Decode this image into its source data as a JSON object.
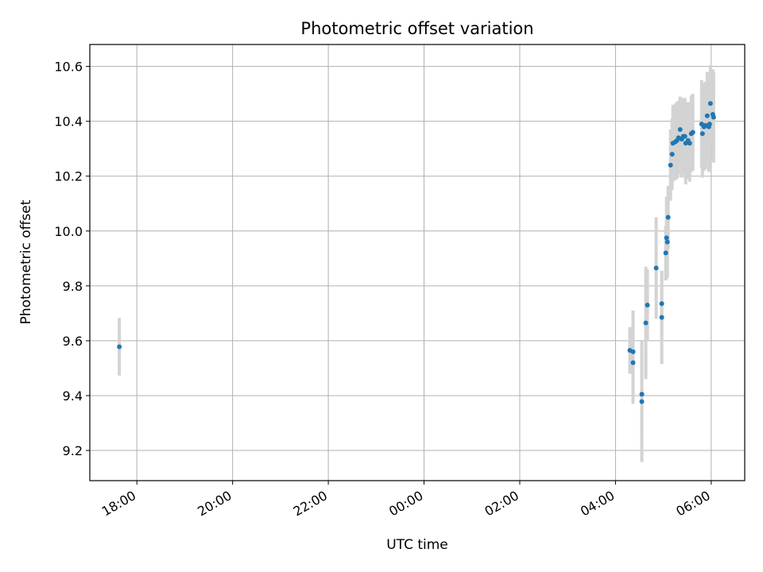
{
  "chart_data": {
    "type": "scatter",
    "title": "Photometric offset variation",
    "xlabel": "UTC time",
    "ylabel": "Photometric offset",
    "x_ticks": [
      "18:00",
      "20:00",
      "22:00",
      "00:00",
      "02:00",
      "04:00",
      "06:00"
    ],
    "y_ticks": [
      "9.2",
      "9.4",
      "9.6",
      "9.8",
      "10.0",
      "10.2",
      "10.4",
      "10.6"
    ],
    "xlim": [
      "17:01",
      "06:42"
    ],
    "ylim": [
      9.09,
      10.68
    ],
    "grid": true,
    "legend": "none",
    "colors": {
      "points": "#1f77b4",
      "errorbars": "#d3d3d3",
      "grid": "#b0b0b0"
    },
    "series": [
      {
        "points": [
          {
            "t": "17:38",
            "y": 9.578,
            "err": 0.105
          },
          {
            "t": "04:18",
            "y": 9.565,
            "err": 0.085
          },
          {
            "t": "04:22",
            "y": 9.56,
            "err": 0.15
          },
          {
            "t": "04:22",
            "y": 9.52,
            "err": 0.15
          },
          {
            "t": "04:33",
            "y": 9.405,
            "err": 0.165
          },
          {
            "t": "04:33",
            "y": 9.378,
            "err": 0.22
          },
          {
            "t": "04:38",
            "y": 9.665,
            "err": 0.205
          },
          {
            "t": "04:40",
            "y": 9.73,
            "err": 0.13
          },
          {
            "t": "04:51",
            "y": 9.865,
            "err": 0.185
          },
          {
            "t": "04:58",
            "y": 9.685,
            "err": 0.17
          },
          {
            "t": "04:58",
            "y": 9.735,
            "err": 0.12
          },
          {
            "t": "05:03",
            "y": 9.92,
            "err": 0.1
          },
          {
            "t": "05:04",
            "y": 9.975,
            "err": 0.15
          },
          {
            "t": "05:05",
            "y": 9.96,
            "err": 0.13
          },
          {
            "t": "05:06",
            "y": 10.05,
            "err": 0.115
          },
          {
            "t": "05:09",
            "y": 10.24,
            "err": 0.13
          },
          {
            "t": "05:11",
            "y": 10.28,
            "err": 0.13
          },
          {
            "t": "05:12",
            "y": 10.32,
            "err": 0.14
          },
          {
            "t": "05:15",
            "y": 10.325,
            "err": 0.14
          },
          {
            "t": "05:17",
            "y": 10.33,
            "err": 0.14
          },
          {
            "t": "05:19",
            "y": 10.34,
            "err": 0.135
          },
          {
            "t": "05:21",
            "y": 10.37,
            "err": 0.12
          },
          {
            "t": "05:23",
            "y": 10.335,
            "err": 0.14
          },
          {
            "t": "05:25",
            "y": 10.345,
            "err": 0.14
          },
          {
            "t": "05:27",
            "y": 10.345,
            "err": 0.14
          },
          {
            "t": "05:28",
            "y": 10.32,
            "err": 0.15
          },
          {
            "t": "05:31",
            "y": 10.33,
            "err": 0.14
          },
          {
            "t": "05:33",
            "y": 10.32,
            "err": 0.14
          },
          {
            "t": "05:35",
            "y": 10.355,
            "err": 0.14
          },
          {
            "t": "05:37",
            "y": 10.36,
            "err": 0.14
          },
          {
            "t": "05:48",
            "y": 10.39,
            "err": 0.16
          },
          {
            "t": "05:49",
            "y": 10.355,
            "err": 0.16
          },
          {
            "t": "05:51",
            "y": 10.38,
            "err": 0.16
          },
          {
            "t": "05:53",
            "y": 10.385,
            "err": 0.16
          },
          {
            "t": "05:55",
            "y": 10.42,
            "err": 0.16
          },
          {
            "t": "05:57",
            "y": 10.38,
            "err": 0.165
          },
          {
            "t": "05:58",
            "y": 10.39,
            "err": 0.165
          },
          {
            "t": "05:59",
            "y": 10.465,
            "err": 0.14
          },
          {
            "t": "06:02",
            "y": 10.425,
            "err": 0.165
          },
          {
            "t": "06:03",
            "y": 10.415,
            "err": 0.165
          }
        ]
      }
    ]
  }
}
